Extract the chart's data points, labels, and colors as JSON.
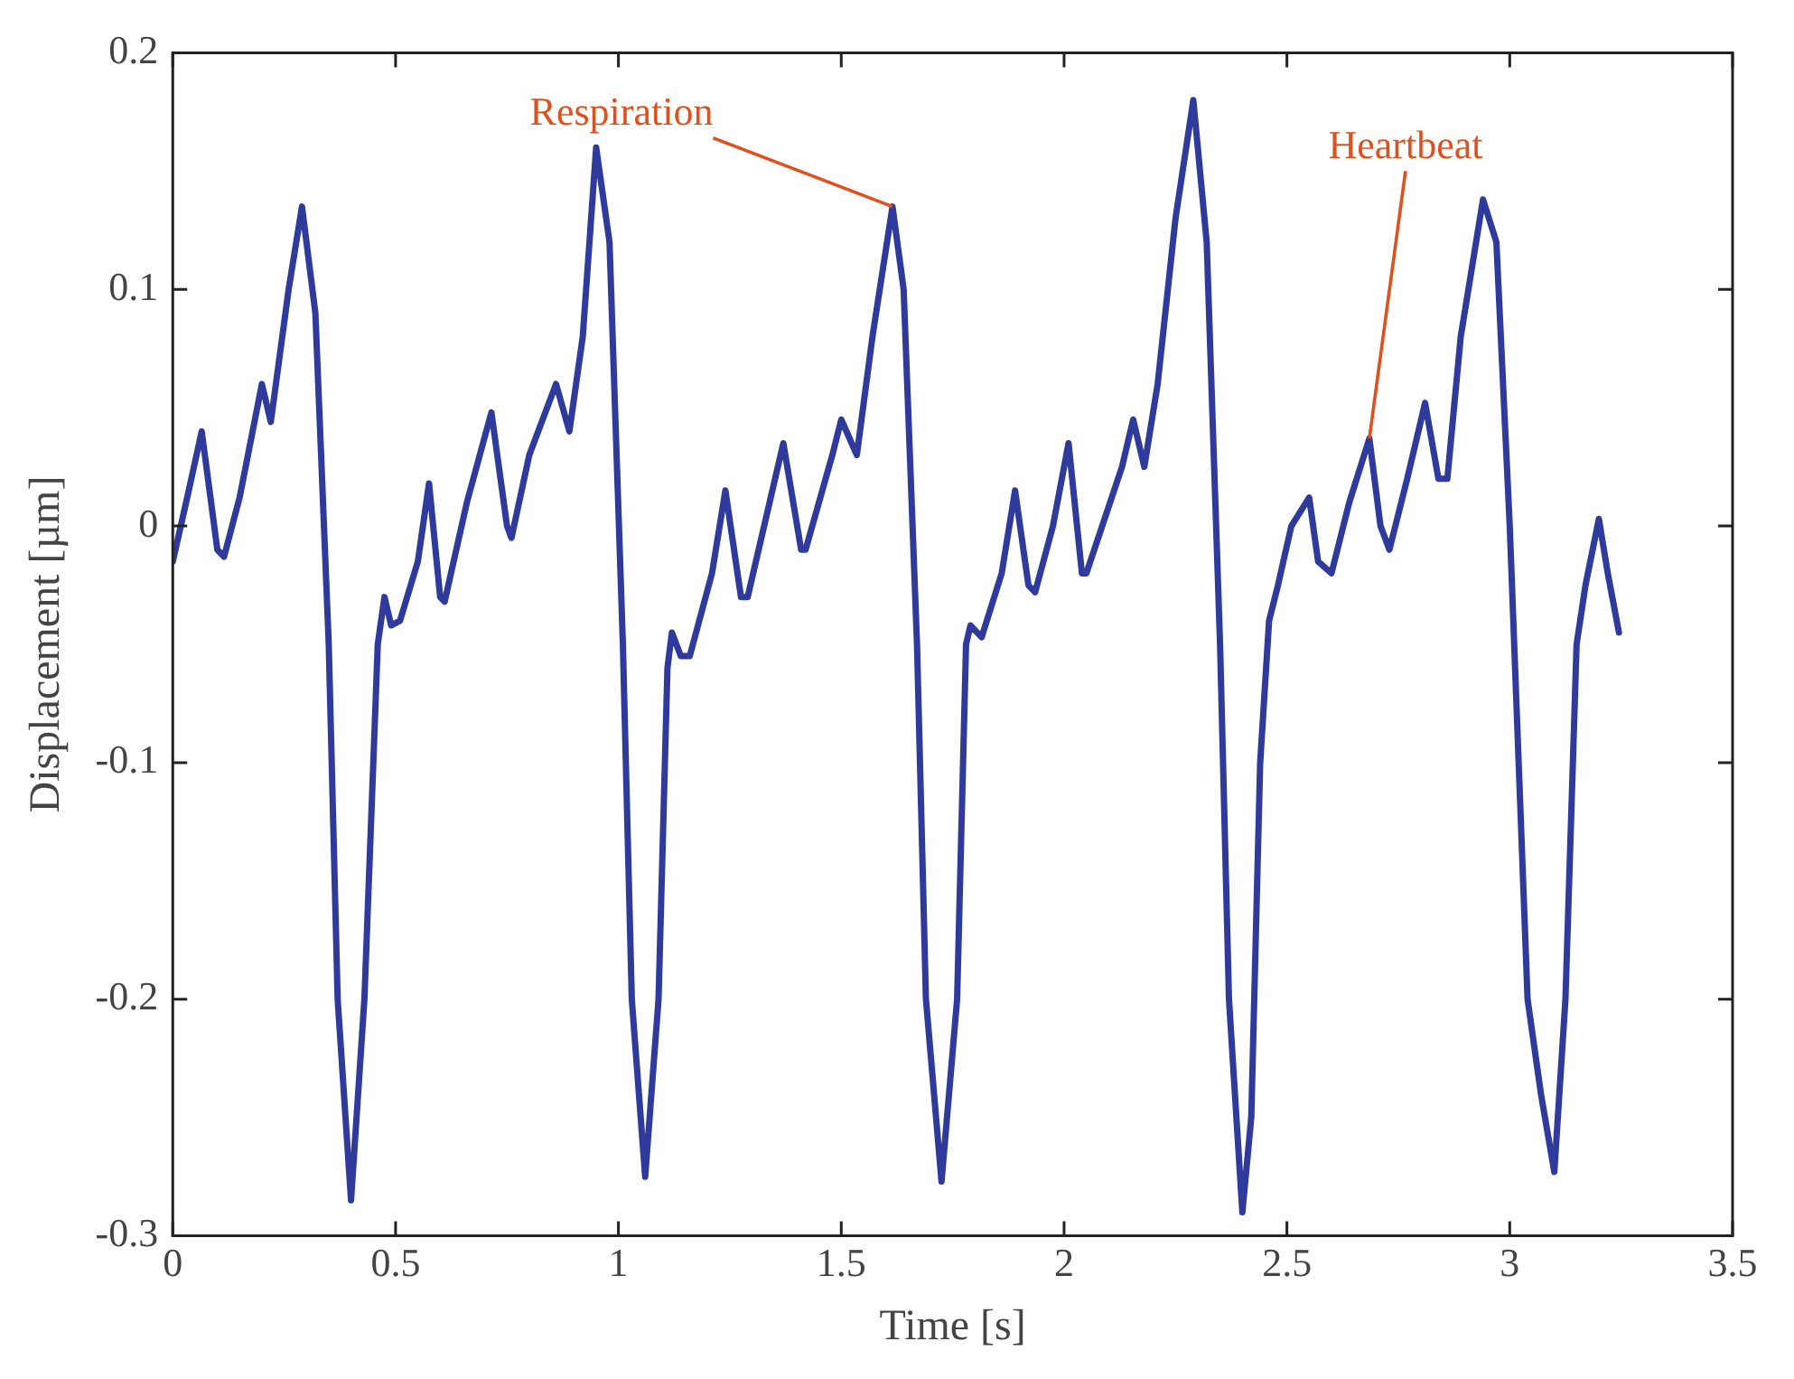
{
  "chart_data": {
    "type": "line",
    "xlabel": "Time [s]",
    "ylabel": "Displacement [µm]",
    "xlim": [
      0,
      3.5
    ],
    "xticks": [
      0,
      0.5,
      1,
      1.5,
      2,
      2.5,
      3,
      3.5
    ],
    "ylim": [
      -0.3,
      0.2
    ],
    "yticks": [
      -0.3,
      -0.2,
      -0.1,
      0,
      0.1,
      0.2
    ],
    "grid": false,
    "legend": false,
    "marker": "none",
    "line_style": "solid",
    "annotations": [
      {
        "text": "Respiration",
        "x": 1.615,
        "y": 0.135
      },
      {
        "text": "Heartbeat",
        "x": 2.685,
        "y": 0.037
      }
    ],
    "series": [
      {
        "color": "#2e3a9c",
        "x": [
          0,
          0.03,
          0.065,
          0.1,
          0.115,
          0.15,
          0.2,
          0.22,
          0.26,
          0.29,
          0.32,
          0.35,
          0.37,
          0.4,
          0.43,
          0.46,
          0.475,
          0.49,
          0.51,
          0.55,
          0.575,
          0.6,
          0.61,
          0.66,
          0.715,
          0.75,
          0.76,
          0.8,
          0.86,
          0.89,
          0.92,
          0.95,
          0.98,
          1.01,
          1.03,
          1.06,
          1.09,
          1.11,
          1.12,
          1.14,
          1.16,
          1.21,
          1.24,
          1.275,
          1.29,
          1.37,
          1.41,
          1.42,
          1.48,
          1.5,
          1.535,
          1.57,
          1.615,
          1.64,
          1.67,
          1.69,
          1.725,
          1.76,
          1.78,
          1.79,
          1.815,
          1.86,
          1.89,
          1.92,
          1.935,
          1.975,
          2.01,
          2.04,
          2.05,
          2.13,
          2.155,
          2.18,
          2.21,
          2.25,
          2.29,
          2.32,
          2.35,
          2.37,
          2.4,
          2.42,
          2.44,
          2.46,
          2.48,
          2.51,
          2.55,
          2.57,
          2.6,
          2.64,
          2.685,
          2.71,
          2.73,
          2.77,
          2.81,
          2.84,
          2.86,
          2.89,
          2.94,
          2.97,
          3.0,
          3.04,
          3.07,
          3.1,
          3.125,
          3.15,
          3.17,
          3.2,
          3.22,
          3.245
        ],
        "values": [
          -0.015,
          0.01,
          0.04,
          -0.01,
          -0.013,
          0.012,
          0.06,
          0.044,
          0.1,
          0.135,
          0.09,
          -0.05,
          -0.2,
          -0.285,
          -0.2,
          -0.05,
          -0.03,
          -0.042,
          -0.04,
          -0.015,
          0.018,
          -0.03,
          -0.032,
          0.01,
          0.048,
          0.0,
          -0.005,
          0.03,
          0.06,
          0.04,
          0.08,
          0.16,
          0.12,
          -0.05,
          -0.2,
          -0.275,
          -0.2,
          -0.06,
          -0.045,
          -0.055,
          -0.055,
          -0.02,
          0.015,
          -0.03,
          -0.03,
          0.035,
          -0.01,
          -0.01,
          0.03,
          0.045,
          0.03,
          0.08,
          0.135,
          0.1,
          -0.05,
          -0.2,
          -0.277,
          -0.2,
          -0.05,
          -0.042,
          -0.047,
          -0.02,
          0.015,
          -0.025,
          -0.028,
          0.0,
          0.035,
          -0.02,
          -0.02,
          0.025,
          0.045,
          0.025,
          0.06,
          0.13,
          0.18,
          0.12,
          -0.05,
          -0.2,
          -0.29,
          -0.25,
          -0.1,
          -0.04,
          -0.025,
          0.0,
          0.012,
          -0.015,
          -0.02,
          0.01,
          0.037,
          0.0,
          -0.01,
          0.02,
          0.052,
          0.02,
          0.02,
          0.08,
          0.138,
          0.12,
          0.0,
          -0.2,
          -0.24,
          -0.273,
          -0.2,
          -0.05,
          -0.025,
          0.003,
          -0.02,
          -0.045
        ]
      }
    ]
  }
}
